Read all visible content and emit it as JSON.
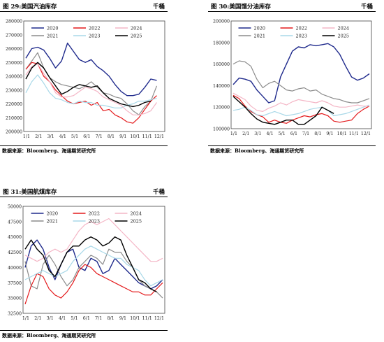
{
  "x_ticks": [
    "1/1",
    "2/1",
    "3/1",
    "4/1",
    "5/1",
    "6/1",
    "7/1",
    "8/1",
    "9/1",
    "10/1",
    "11/1",
    "12/1"
  ],
  "colors": {
    "2020": "#1f2a8c",
    "2021": "#8c8c8c",
    "2022": "#e41a1c",
    "2023": "#a8d8e8",
    "2024": "#f4b6c6",
    "2025": "#000000"
  },
  "chart_data": [
    {
      "type": "line",
      "title": "图 29:美国汽油库存",
      "unit": "千桶",
      "source": "数据来源：Bloomberg、海通期货研究所",
      "ylim": [
        200000,
        280000
      ],
      "yticks": [
        200000,
        210000,
        220000,
        230000,
        240000,
        250000,
        260000,
        270000,
        280000
      ],
      "grid": false,
      "legend": "top",
      "series": [
        {
          "name": "2020",
          "values": [
            253,
            260,
            261,
            259,
            253,
            246,
            251,
            264,
            258,
            252,
            250,
            252,
            247,
            244,
            240,
            234,
            229,
            226,
            226,
            227,
            232,
            238,
            237
          ]
        },
        {
          "name": "2021",
          "values": [
            245,
            251,
            257,
            246,
            239,
            236,
            234,
            233,
            232,
            231,
            233,
            236,
            232,
            228,
            227,
            225,
            224,
            220,
            215,
            212,
            218,
            222,
            233
          ]
        },
        {
          "name": "2022",
          "values": [
            245,
            250,
            249,
            240,
            236,
            230,
            226,
            222,
            220,
            221,
            222,
            219,
            221,
            215,
            216,
            212,
            210,
            207,
            206,
            210,
            216,
            222,
            226
          ]
        },
        {
          "name": "2023",
          "values": [
            228,
            236,
            241,
            235,
            228,
            224,
            223,
            221,
            220,
            222,
            221,
            221,
            219,
            219,
            218,
            217,
            217,
            219,
            220,
            222,
            222,
            223,
            224
          ]
        },
        {
          "name": "2024",
          "values": [
            241,
            247,
            249,
            242,
            236,
            228,
            225,
            225,
            226,
            229,
            232,
            231,
            229,
            225,
            223,
            221,
            219,
            215,
            212,
            212,
            213,
            215,
            221
          ]
        },
        {
          "name": "2025",
          "values": [
            238,
            246,
            250,
            246,
            239,
            233,
            227,
            229,
            232,
            234,
            233,
            232,
            233,
            228,
            224,
            222,
            220,
            219,
            218,
            219,
            221,
            222
          ]
        }
      ]
    },
    {
      "type": "line",
      "title": "图 30:美国馏分油库存",
      "unit": "千桶",
      "source": "数据来源：Bloomberg、海通期货研究所",
      "ylim": [
        100000,
        200000
      ],
      "yticks": [
        100000,
        120000,
        140000,
        160000,
        180000,
        200000
      ],
      "grid": false,
      "legend": "top",
      "series": [
        {
          "name": "2020",
          "values": [
            141,
            147,
            146,
            144,
            136,
            130,
            124,
            126,
            148,
            160,
            172,
            176,
            175,
            178,
            177,
            178,
            179,
            176,
            169,
            158,
            148,
            145,
            147,
            151
          ]
        },
        {
          "name": "2021",
          "values": [
            160,
            163,
            162,
            158,
            146,
            138,
            142,
            144,
            140,
            136,
            135,
            137,
            138,
            135,
            136,
            132,
            130,
            128,
            127,
            125,
            124,
            124,
            126,
            128
          ]
        },
        {
          "name": "2022",
          "values": [
            131,
            128,
            121,
            116,
            113,
            111,
            106,
            108,
            106,
            105,
            108,
            110,
            112,
            111,
            113,
            114,
            112,
            107,
            106,
            107,
            108,
            114,
            118,
            121
          ]
        },
        {
          "name": "2023",
          "values": [
            117,
            118,
            120,
            117,
            113,
            112,
            114,
            116,
            114,
            112,
            113,
            114,
            116,
            118,
            119,
            120,
            117,
            112,
            113,
            114,
            116,
            118,
            120,
            122
          ]
        },
        {
          "name": "2024",
          "values": [
            133,
            130,
            127,
            121,
            117,
            116,
            119,
            121,
            124,
            122,
            125,
            127,
            126,
            125,
            124,
            126,
            124,
            121,
            120,
            120,
            121,
            122,
            121,
            121
          ]
        },
        {
          "name": "2025",
          "values": [
            130,
            125,
            120,
            114,
            109,
            106,
            105,
            104,
            106,
            108,
            108,
            104,
            104,
            108,
            112,
            120,
            117,
            114
          ]
        }
      ]
    },
    {
      "type": "line",
      "title": "图 31:美国航煤库存",
      "unit": "千桶",
      "source": "数据来源：Bloomberg、海通期货研究所",
      "ylim": [
        32500,
        50000
      ],
      "yticks": [
        32500,
        35000,
        37500,
        40000,
        42500,
        45000,
        47500,
        50000
      ],
      "grid": false,
      "legend": "top",
      "series": [
        {
          "name": "2020",
          "values": [
            40.0,
            43.5,
            44.5,
            43.0,
            40.0,
            38.0,
            40.5,
            42.5,
            43.0,
            40.0,
            39.5,
            41.5,
            41.0,
            39.0,
            39.5,
            41.5,
            40.5,
            39.5,
            38.5,
            37.5,
            37.0,
            36.5,
            37.0,
            38.0
          ]
        },
        {
          "name": "2021",
          "values": [
            41.0,
            37.0,
            36.5,
            40.5,
            42.0,
            40.5,
            38.5,
            37.0,
            38.0,
            40.0,
            41.0,
            42.0,
            41.5,
            40.5,
            43.0,
            42.5,
            42.5,
            41.0,
            40.0,
            38.0,
            37.0,
            36.5,
            36.0,
            35.0
          ]
        },
        {
          "name": "2022",
          "values": [
            34.0,
            37.0,
            39.0,
            38.5,
            36.5,
            35.5,
            35.0,
            36.0,
            37.5,
            39.5,
            40.5,
            40.0,
            39.0,
            38.5,
            38.0,
            37.5,
            37.0,
            36.5,
            36.0,
            36.0,
            35.5,
            35.5,
            36.5,
            37.5
          ]
        },
        {
          "name": "2023",
          "values": [
            38.0,
            38.5,
            39.0,
            39.5,
            39.0,
            38.5,
            39.0,
            39.5,
            41.0,
            42.0,
            43.0,
            43.5,
            43.0,
            42.5,
            42.0,
            41.5,
            41.5,
            40.5,
            40.0,
            39.5,
            38.0,
            37.0,
            37.5,
            38.0
          ]
        },
        {
          "name": "2024",
          "values": [
            42.0,
            41.5,
            41.0,
            41.5,
            42.5,
            43.0,
            42.5,
            43.0,
            44.5,
            46.0,
            47.0,
            47.5,
            47.0,
            47.5,
            48.0,
            47.0,
            46.0,
            45.0,
            44.0,
            43.0,
            42.0,
            41.0,
            41.0,
            41.5
          ]
        },
        {
          "name": "2025",
          "values": [
            43.0,
            44.5,
            43.0,
            42.0,
            39.5,
            38.5,
            40.5,
            42.5,
            43.5,
            43.5,
            44.5,
            45.0,
            44.5,
            43.5,
            44.0,
            45.0,
            44.5,
            42.0,
            40.0,
            38.0,
            37.5,
            36.5,
            36.0
          ]
        }
      ]
    }
  ]
}
